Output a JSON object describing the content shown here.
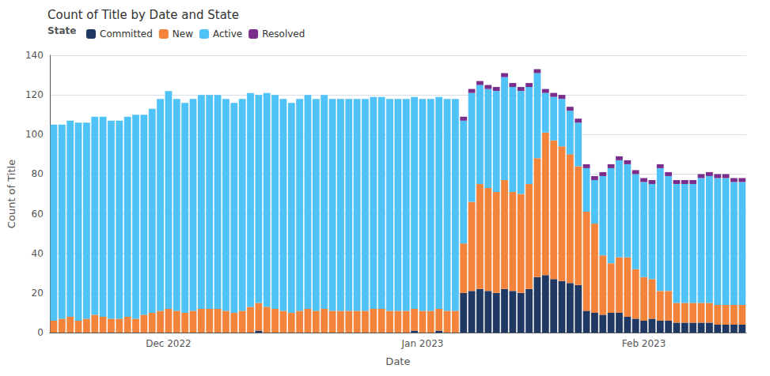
{
  "chart_data": {
    "type": "bar",
    "stacked": true,
    "title": "Count of Title by Date and State",
    "xlabel": "Date",
    "ylabel": "Count of Title",
    "legend_title": "State",
    "legend": "upper left",
    "grid": true,
    "ylim": [
      0,
      140
    ],
    "yticks": [
      0,
      20,
      40,
      60,
      80,
      100,
      120,
      140
    ],
    "categories": [
      null,
      null,
      null,
      null,
      null,
      null,
      null,
      null,
      null,
      null,
      null,
      null,
      null,
      null,
      "Dec 2022",
      null,
      null,
      null,
      null,
      null,
      null,
      null,
      null,
      null,
      null,
      null,
      null,
      null,
      null,
      null,
      null,
      null,
      null,
      null,
      null,
      null,
      null,
      null,
      null,
      null,
      null,
      null,
      null,
      null,
      null,
      "Jan 2023",
      null,
      null,
      null,
      null,
      null,
      null,
      null,
      null,
      null,
      null,
      null,
      null,
      null,
      null,
      null,
      null,
      null,
      null,
      null,
      null,
      null,
      null,
      null,
      null,
      null,
      null,
      "Feb 2023",
      null,
      null,
      null,
      null,
      null,
      null,
      null,
      null,
      null,
      null,
      null,
      null
    ],
    "series": [
      {
        "name": "Committed",
        "color": "#1f3864",
        "values": [
          0,
          0,
          0,
          0,
          0,
          0,
          0,
          0,
          0,
          0,
          0,
          0,
          0,
          0,
          0,
          0,
          0,
          0,
          0,
          0,
          0,
          0,
          0,
          0,
          0,
          1,
          0,
          0,
          0,
          0,
          0,
          0,
          0,
          0,
          0,
          0,
          0,
          0,
          0,
          0,
          0,
          0,
          0,
          0,
          1,
          0,
          0,
          1,
          0,
          0,
          20,
          21,
          22,
          21,
          20,
          22,
          21,
          20,
          22,
          28,
          29,
          27,
          26,
          25,
          24,
          11,
          10,
          9,
          10,
          10,
          8,
          7,
          6,
          7,
          6,
          6,
          5,
          5,
          5,
          5,
          5,
          4,
          4,
          4,
          4
        ]
      },
      {
        "name": "New",
        "color": "#f4843c",
        "values": [
          6,
          7,
          8,
          6,
          7,
          9,
          8,
          7,
          7,
          8,
          7,
          9,
          10,
          11,
          12,
          11,
          10,
          11,
          12,
          12,
          12,
          11,
          10,
          11,
          13,
          14,
          13,
          12,
          11,
          10,
          11,
          12,
          11,
          12,
          11,
          11,
          11,
          11,
          11,
          12,
          12,
          11,
          11,
          11,
          11,
          11,
          11,
          11,
          11,
          11,
          25,
          45,
          53,
          52,
          51,
          55,
          50,
          50,
          53,
          60,
          72,
          70,
          68,
          65,
          60,
          50,
          45,
          30,
          25,
          28,
          30,
          25,
          22,
          20,
          15,
          15,
          10,
          10,
          10,
          10,
          10,
          10,
          10,
          10,
          10
        ]
      },
      {
        "name": "Active",
        "color": "#4fc3f7",
        "values": [
          99,
          98,
          99,
          100,
          99,
          100,
          101,
          100,
          100,
          101,
          103,
          101,
          103,
          107,
          110,
          107,
          106,
          107,
          108,
          108,
          108,
          107,
          106,
          107,
          108,
          105,
          108,
          108,
          107,
          106,
          107,
          108,
          107,
          108,
          107,
          107,
          107,
          107,
          107,
          107,
          107,
          107,
          107,
          107,
          107,
          107,
          107,
          107,
          107,
          107,
          62,
          55,
          50,
          50,
          51,
          52,
          53,
          52,
          49,
          43,
          20,
          22,
          24,
          22,
          22,
          22,
          22,
          40,
          48,
          49,
          47,
          48,
          48,
          48,
          62,
          58,
          60,
          60,
          60,
          63,
          64,
          64,
          64,
          62,
          62
        ]
      },
      {
        "name": "Resolved",
        "color": "#7b2d8b",
        "values": [
          0,
          0,
          0,
          0,
          0,
          0,
          0,
          0,
          0,
          0,
          0,
          0,
          0,
          0,
          0,
          0,
          0,
          0,
          0,
          0,
          0,
          0,
          0,
          0,
          0,
          0,
          0,
          0,
          0,
          0,
          0,
          0,
          0,
          0,
          0,
          0,
          0,
          0,
          0,
          0,
          0,
          0,
          0,
          0,
          0,
          0,
          0,
          0,
          0,
          0,
          2,
          2,
          2,
          2,
          2,
          2,
          2,
          2,
          2,
          2,
          2,
          2,
          2,
          2,
          2,
          2,
          2,
          2,
          2,
          2,
          2,
          2,
          2,
          2,
          2,
          2,
          2,
          2,
          2,
          2,
          2,
          2,
          2,
          2,
          2
        ]
      }
    ]
  }
}
